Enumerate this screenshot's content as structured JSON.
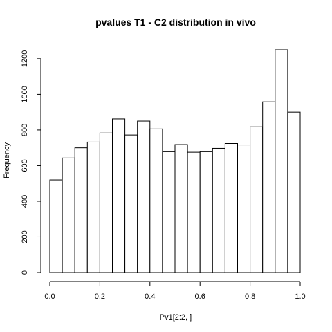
{
  "chart_data": {
    "type": "bar",
    "title": "pvalues T1 - C2 distribution in vivo",
    "xlabel": "Pv1[2:2, ]",
    "ylabel": "Frequency",
    "bins": [
      {
        "x0": 0.0,
        "x1": 0.05,
        "value": 520
      },
      {
        "x0": 0.05,
        "x1": 0.1,
        "value": 643
      },
      {
        "x0": 0.1,
        "x1": 0.15,
        "value": 700
      },
      {
        "x0": 0.15,
        "x1": 0.2,
        "value": 732
      },
      {
        "x0": 0.2,
        "x1": 0.25,
        "value": 783
      },
      {
        "x0": 0.25,
        "x1": 0.3,
        "value": 862
      },
      {
        "x0": 0.3,
        "x1": 0.35,
        "value": 772
      },
      {
        "x0": 0.35,
        "x1": 0.4,
        "value": 850
      },
      {
        "x0": 0.4,
        "x1": 0.45,
        "value": 806
      },
      {
        "x0": 0.45,
        "x1": 0.5,
        "value": 678
      },
      {
        "x0": 0.5,
        "x1": 0.55,
        "value": 718
      },
      {
        "x0": 0.55,
        "x1": 0.6,
        "value": 675
      },
      {
        "x0": 0.6,
        "x1": 0.65,
        "value": 678
      },
      {
        "x0": 0.65,
        "x1": 0.7,
        "value": 697
      },
      {
        "x0": 0.7,
        "x1": 0.75,
        "value": 724
      },
      {
        "x0": 0.75,
        "x1": 0.8,
        "value": 716
      },
      {
        "x0": 0.8,
        "x1": 0.85,
        "value": 818
      },
      {
        "x0": 0.85,
        "x1": 0.9,
        "value": 958
      },
      {
        "x0": 0.9,
        "x1": 0.95,
        "value": 1250
      },
      {
        "x0": 0.95,
        "x1": 1.0,
        "value": 900
      }
    ],
    "xlim": [
      0,
      1
    ],
    "ylim": [
      0,
      1250
    ],
    "xticks": [
      {
        "value": 0.0,
        "label": "0.0"
      },
      {
        "value": 0.2,
        "label": "0.2"
      },
      {
        "value": 0.4,
        "label": "0.4"
      },
      {
        "value": 0.6,
        "label": "0.6"
      },
      {
        "value": 0.8,
        "label": "0.8"
      },
      {
        "value": 1.0,
        "label": "1.0"
      }
    ],
    "yticks": [
      {
        "value": 0,
        "label": "0"
      },
      {
        "value": 200,
        "label": "200"
      },
      {
        "value": 400,
        "label": "400"
      },
      {
        "value": 600,
        "label": "600"
      },
      {
        "value": 800,
        "label": "800"
      },
      {
        "value": 1000,
        "label": "1000"
      },
      {
        "value": 1200,
        "label": "1200"
      }
    ],
    "grid": false,
    "legend": "none",
    "colors": {
      "bar_fill": "#ffffff",
      "bar_stroke": "#000000"
    }
  }
}
